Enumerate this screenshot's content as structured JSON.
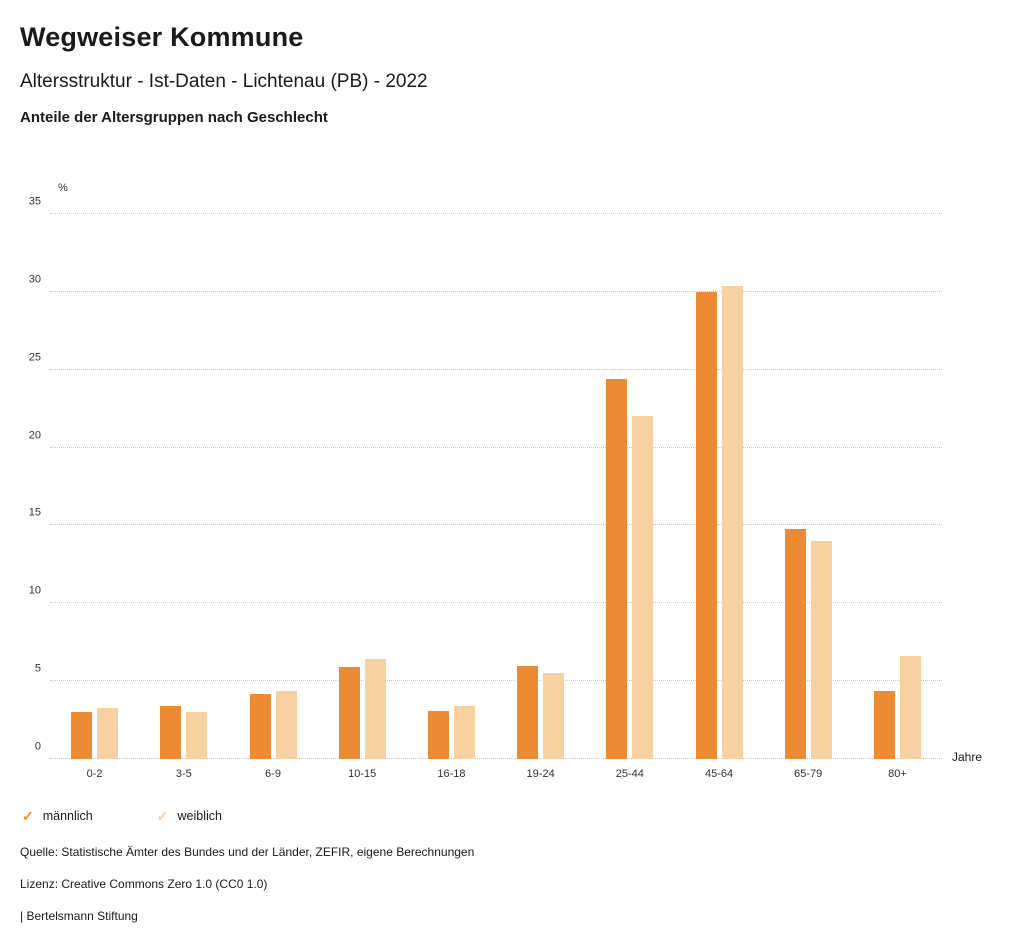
{
  "header": {
    "title": "Wegweiser Kommune",
    "subtitle": "Altersstruktur - Ist-Daten - Lichtenau (PB) - 2022",
    "section_title": "Anteile der Altersgruppen nach Geschlecht"
  },
  "chart_data": {
    "type": "bar",
    "title": "Anteile der Altersgruppen nach Geschlecht",
    "y_unit_label": "%",
    "x_unit_label": "Jahre",
    "categories": [
      "0-2",
      "3-5",
      "6-9",
      "10-15",
      "16-18",
      "19-24",
      "25-44",
      "45-64",
      "65-79",
      "80+"
    ],
    "series": [
      {
        "name": "männlich",
        "color": "#EC8B33",
        "values": [
          3.0,
          3.4,
          4.2,
          5.9,
          3.1,
          6.0,
          24.4,
          30.0,
          14.8,
          4.4
        ]
      },
      {
        "name": "weiblich",
        "color": "#F7D2A0",
        "values": [
          3.3,
          3.0,
          4.4,
          6.4,
          3.4,
          5.5,
          22.0,
          30.4,
          14.0,
          6.6
        ]
      }
    ],
    "ylim": [
      0,
      35
    ],
    "yticks": [
      0,
      5,
      10,
      15,
      20,
      25,
      30,
      35
    ],
    "grid": "dotted horizontal",
    "legend_position": "bottom-left"
  },
  "legend": {
    "check_glyph": "✓"
  },
  "footer": {
    "source": "Quelle: Statistische Ämter des Bundes und der Länder, ZEFIR, eigene Berechnungen",
    "license": "Lizenz: Creative Commons Zero 1.0 (CC0 1.0)",
    "branding": "| Bertelsmann Stiftung"
  }
}
